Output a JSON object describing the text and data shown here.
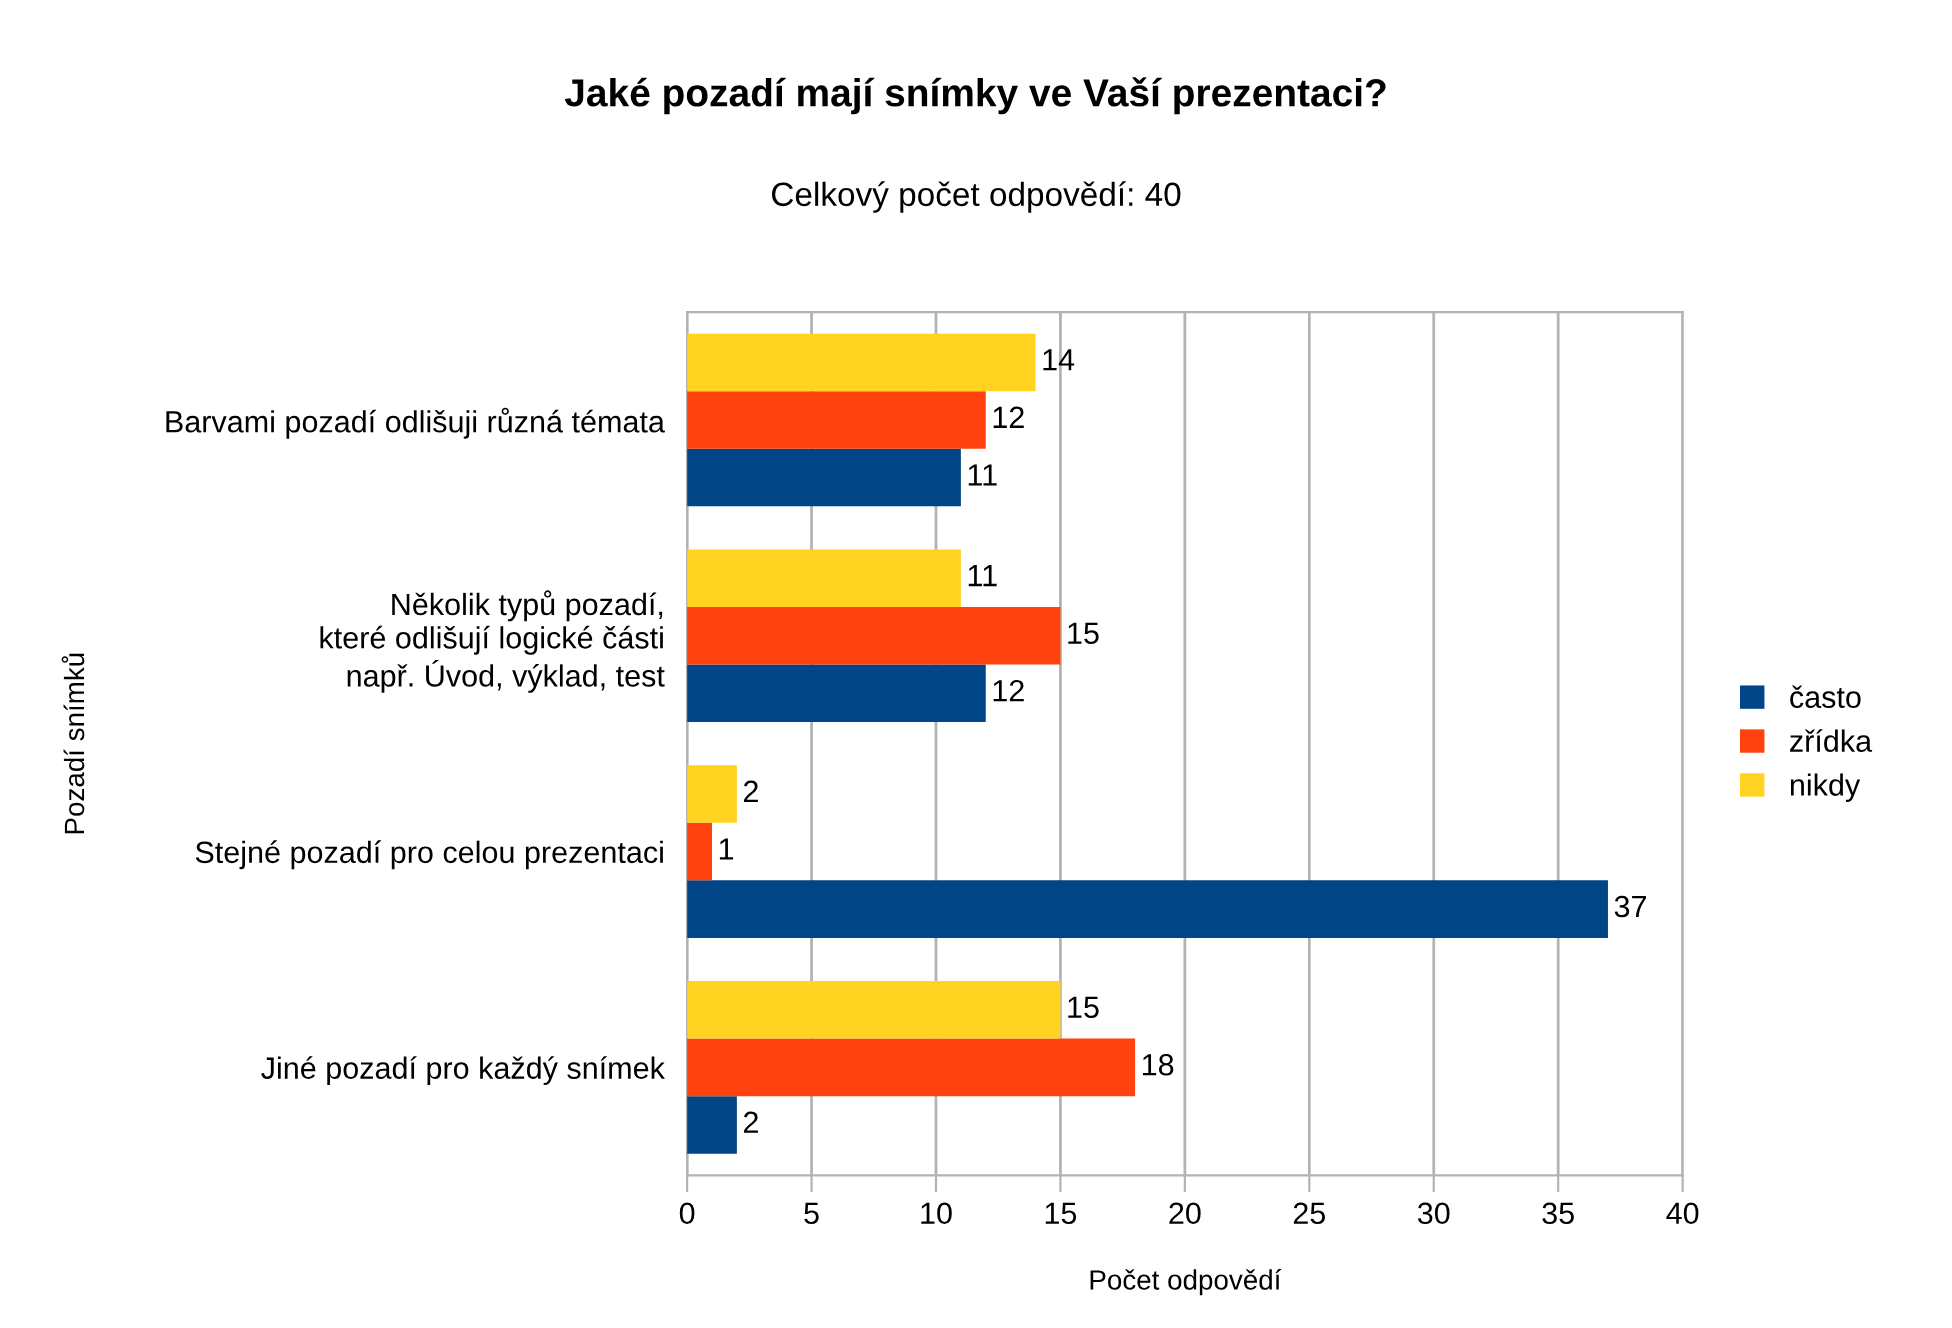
{
  "chart_data": {
    "type": "bar",
    "orientation": "horizontal",
    "title": "Jaké pozadí mají snímky ve Vaší prezentaci?",
    "subtitle": "Celkový počet odpovědí: 40",
    "xlabel": "Počet odpovědí",
    "ylabel": "Pozadí snímků",
    "categories": [
      "Barvami pozadí odlišuji různá témata",
      "Několik typů pozadí,\nkteré odlišují logické části\nnapř. Úvod, výklad, test",
      "Stejné pozadí pro celou prezentaci",
      "Jiné pozadí pro každý snímek"
    ],
    "series": [
      {
        "name": "často",
        "color": "#004586",
        "values": [
          11,
          12,
          37,
          2
        ]
      },
      {
        "name": "zřídka",
        "color": "#ff420e",
        "values": [
          12,
          15,
          1,
          18
        ]
      },
      {
        "name": "nikdy",
        "color": "#ffd320",
        "values": [
          14,
          11,
          2,
          15
        ]
      }
    ],
    "xlim": [
      0,
      40
    ],
    "xticks": [
      0,
      5,
      10,
      15,
      20,
      25,
      30,
      35,
      40
    ],
    "grid": "x",
    "legend": "right",
    "data_labels": true
  }
}
